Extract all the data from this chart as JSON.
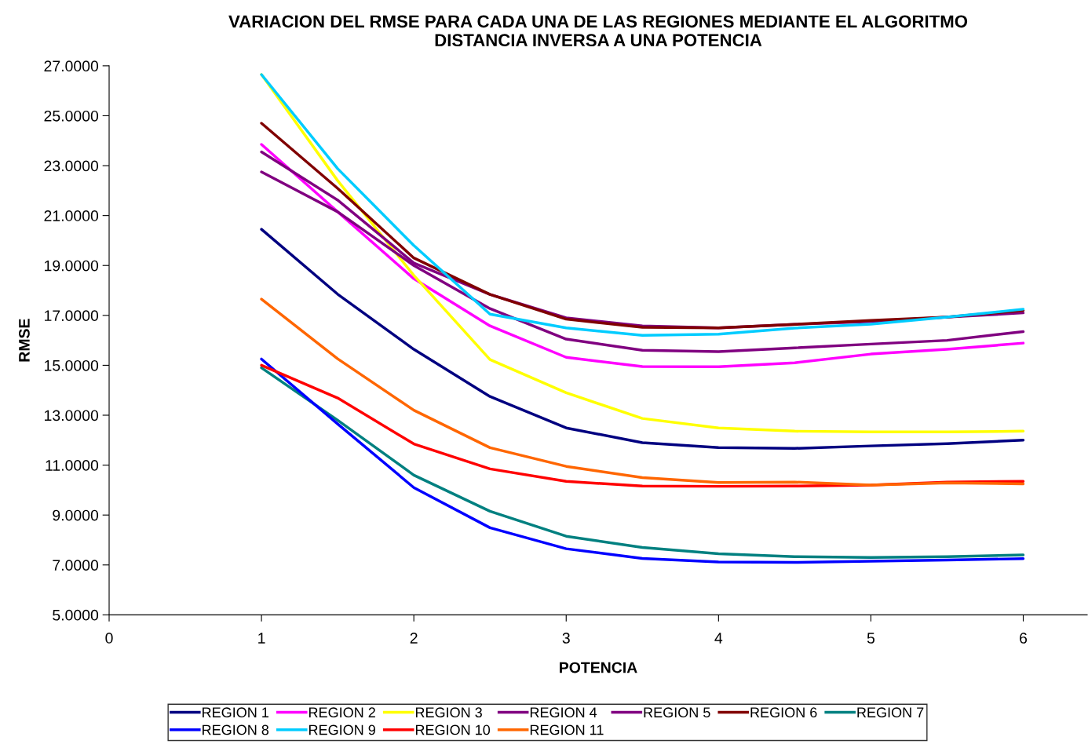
{
  "chart_data": {
    "type": "line",
    "title": "VARIACION DEL RMSE PARA CADA UNA DE LAS REGIONES MEDIANTE EL ALGORITMO\nDISTANCIA INVERSA A UNA POTENCIA",
    "xlabel": "POTENCIA",
    "ylabel": "RMSE",
    "x": [
      1,
      1.5,
      2,
      2.5,
      3,
      3.5,
      4,
      4.5,
      5,
      5.5,
      6
    ],
    "series": [
      {
        "name": "REGION 1",
        "color": "#000080",
        "values": [
          20.45,
          17.85,
          15.64,
          13.75,
          12.49,
          11.9,
          11.7,
          11.67,
          11.77,
          11.86,
          12.0
        ]
      },
      {
        "name": "REGION 2",
        "color": "#ff00ff",
        "values": [
          23.85,
          21.15,
          18.47,
          16.58,
          15.32,
          14.95,
          14.94,
          15.1,
          15.45,
          15.64,
          15.89
        ]
      },
      {
        "name": "REGION 3",
        "color": "#ffff00",
        "values": [
          26.65,
          22.4,
          18.6,
          15.23,
          13.9,
          12.87,
          12.49,
          12.36,
          12.33,
          12.33,
          12.36
        ]
      },
      {
        "name": "REGION 4",
        "color": "#800080",
        "values": [
          23.55,
          21.62,
          19.1,
          17.84,
          16.9,
          16.58,
          16.5,
          16.64,
          16.75,
          16.93,
          17.1
        ]
      },
      {
        "name": "REGION 5",
        "color": "#800080",
        "values": [
          22.75,
          21.15,
          19.0,
          17.27,
          16.05,
          15.6,
          15.55,
          15.7,
          15.85,
          16.0,
          16.35
        ]
      },
      {
        "name": "REGION 6",
        "color": "#800000",
        "values": [
          24.7,
          22.09,
          19.3,
          17.84,
          16.85,
          16.52,
          16.5,
          16.64,
          16.8,
          16.93,
          17.2
        ]
      },
      {
        "name": "REGION 7",
        "color": "#008080",
        "values": [
          14.9,
          12.8,
          10.6,
          9.15,
          8.15,
          7.7,
          7.45,
          7.33,
          7.3,
          7.33,
          7.4
        ]
      },
      {
        "name": "REGION 8",
        "color": "#0000ff",
        "values": [
          15.25,
          12.65,
          10.1,
          8.49,
          7.65,
          7.26,
          7.12,
          7.1,
          7.15,
          7.2,
          7.25
        ]
      },
      {
        "name": "REGION 9",
        "color": "#00ccff",
        "values": [
          26.65,
          22.88,
          19.8,
          17.05,
          16.5,
          16.2,
          16.25,
          16.49,
          16.65,
          16.93,
          17.25
        ]
      },
      {
        "name": "REGION 10",
        "color": "#ff0000",
        "values": [
          15.0,
          13.69,
          11.85,
          10.85,
          10.35,
          10.16,
          10.15,
          10.16,
          10.2,
          10.32,
          10.35
        ]
      },
      {
        "name": "REGION 11",
        "color": "#ff6600",
        "values": [
          17.65,
          15.26,
          13.2,
          11.7,
          10.95,
          10.5,
          10.3,
          10.32,
          10.2,
          10.29,
          10.25
        ]
      }
    ],
    "xlim": [
      0,
      6.42
    ],
    "xticks": [
      0,
      1,
      2,
      3,
      4,
      5,
      6
    ],
    "ylim": [
      5,
      27
    ],
    "yticks": [
      {
        "value": 5,
        "label": "5.0000"
      },
      {
        "value": 7,
        "label": "7.0000"
      },
      {
        "value": 9,
        "label": "9.0000"
      },
      {
        "value": 11,
        "label": "11.0000"
      },
      {
        "value": 13,
        "label": "13.0000"
      },
      {
        "value": 15,
        "label": "15.0000"
      },
      {
        "value": 17,
        "label": "17.0000"
      },
      {
        "value": 19,
        "label": "19.0000"
      },
      {
        "value": 21,
        "label": "21.0000"
      },
      {
        "value": 23,
        "label": "23.0000"
      },
      {
        "value": 25,
        "label": "25.0000"
      },
      {
        "value": 27,
        "label": "27.0000"
      }
    ],
    "grid": false,
    "legend": "bottom",
    "marker": "none",
    "line_style": "solid"
  }
}
